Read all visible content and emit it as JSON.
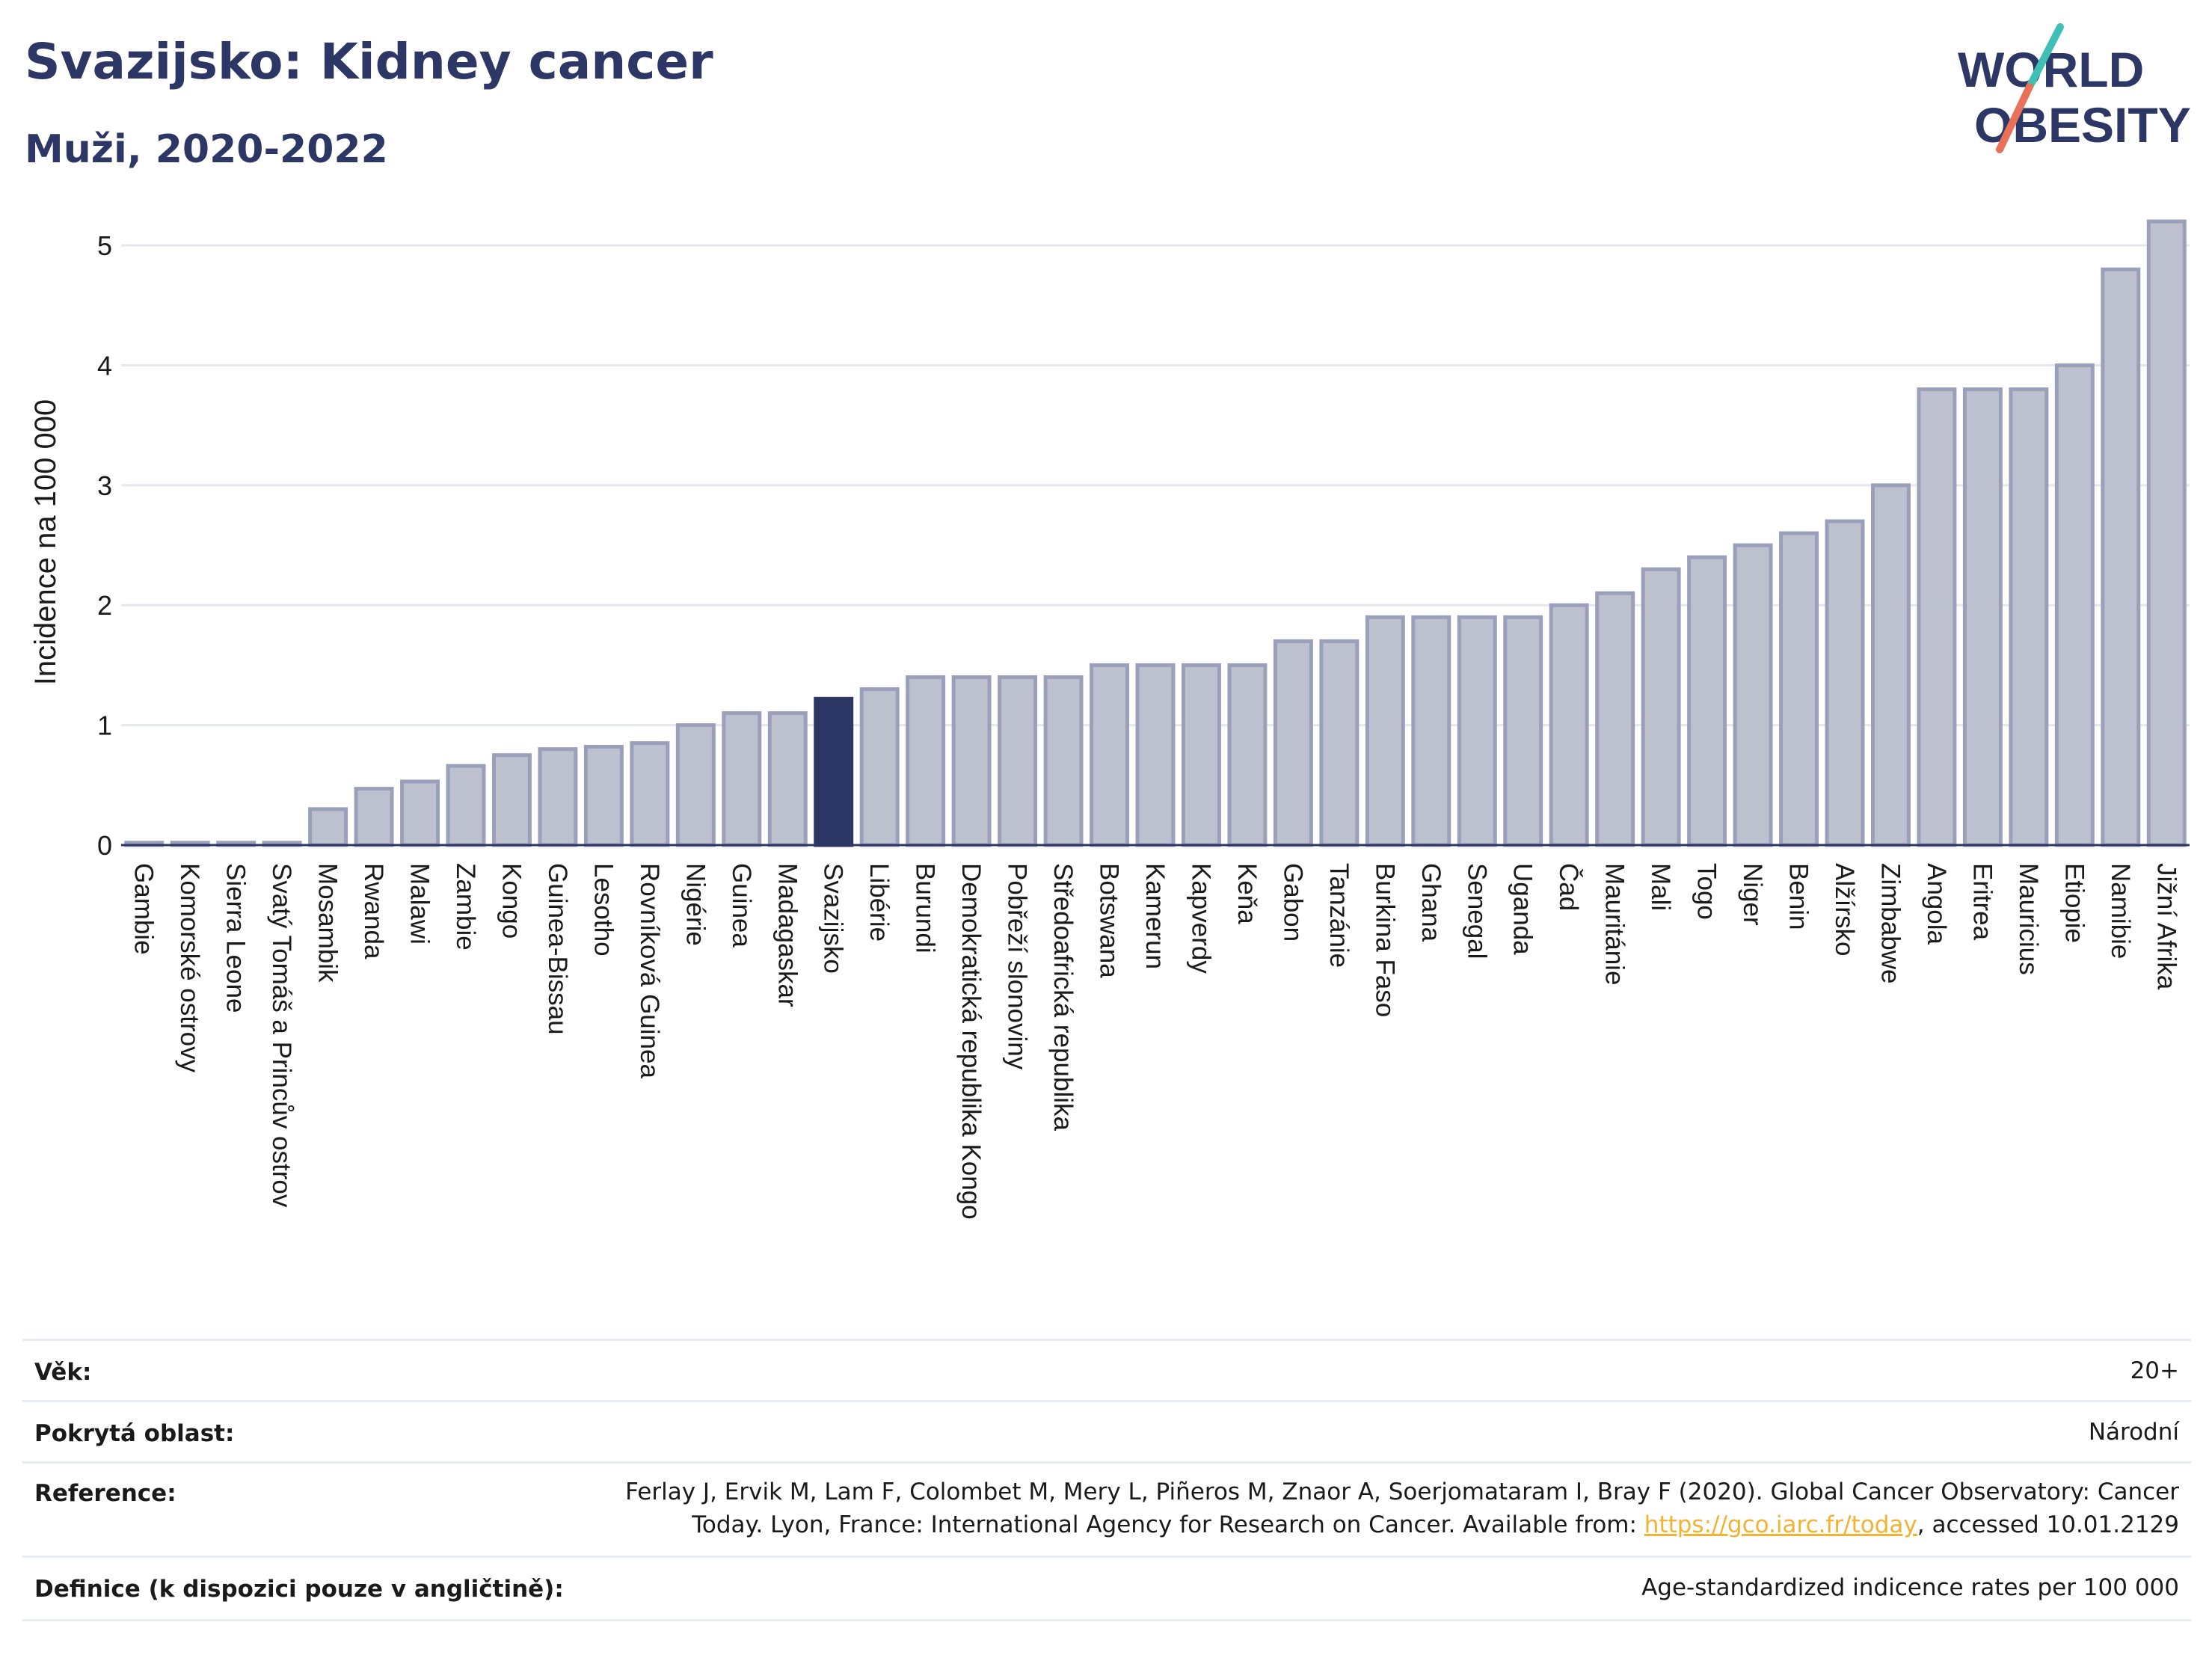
{
  "header": {
    "title": "Svazijsko: Kidney cancer",
    "subtitle": "Muži, 2020-2022",
    "logo_line1": "WORLD",
    "logo_line2": "OBESITY"
  },
  "colors": {
    "bar": "#bcc0cf",
    "bar_stroke": "#9aa0b9",
    "highlight": "#2c3765",
    "text_dark": "#2c3765",
    "logo_teal": "#3fbfb5",
    "logo_coral": "#e8715a"
  },
  "chart_data": {
    "type": "bar",
    "ylabel": "Incidence na 100 000",
    "ylim": [
      0,
      5.3
    ],
    "yticks": [
      0,
      1,
      2,
      3,
      4,
      5
    ],
    "grid": true,
    "highlight": "Svazijsko",
    "categories": [
      "Gambie",
      "Komorské ostrovy",
      "Sierra Leone",
      "Svatý Tomáš a Princův ostrov",
      "Mosambik",
      "Rwanda",
      "Malawi",
      "Zambie",
      "Kongo",
      "Guinea-Bissau",
      "Lesotho",
      "Rovníková Guinea",
      "Nigérie",
      "Guinea",
      "Madagaskar",
      "Svazijsko",
      "Libérie",
      "Burundi",
      "Demokratická republika Kongo",
      "Pobřeží slonoviny",
      "Středoafrická republika",
      "Botswana",
      "Kamerun",
      "Kapverdy",
      "Keňa",
      "Gabon",
      "Tanzánie",
      "Burkina Faso",
      "Ghana",
      "Senegal",
      "Uganda",
      "Čad",
      "Mauritánie",
      "Mali",
      "Togo",
      "Niger",
      "Benin",
      "Alžírsko",
      "Zimbabwe",
      "Angola",
      "Eritrea",
      "Mauricius",
      "Etiopie",
      "Namibie",
      "Jižní Afrika"
    ],
    "values": [
      0.02,
      0.02,
      0.02,
      0.02,
      0.3,
      0.47,
      0.53,
      0.66,
      0.75,
      0.8,
      0.82,
      0.85,
      1.0,
      1.1,
      1.1,
      1.22,
      1.3,
      1.4,
      1.4,
      1.4,
      1.4,
      1.5,
      1.5,
      1.5,
      1.5,
      1.7,
      1.7,
      1.9,
      1.9,
      1.9,
      1.9,
      2.0,
      2.1,
      2.3,
      2.4,
      2.5,
      2.6,
      2.7,
      3.0,
      3.8,
      3.8,
      3.8,
      4.0,
      4.8,
      5.2
    ]
  },
  "info": {
    "age_label": "Věk:",
    "age_value": "20+",
    "area_label": "Pokrytá oblast:",
    "area_value": "Národní",
    "reference_label": "Reference:",
    "reference_line1": "Ferlay J, Ervik M, Lam F, Colombet M, Mery L, Piñeros M, Znaor A, Soerjomataram I, Bray F (2020). Global Cancer Observatory: Cancer",
    "reference_line2_pre": "Today. Lyon, France: International Agency for Research on Cancer. Available from: ",
    "reference_link": "https://gco.iarc.fr/today",
    "reference_line2_post": ", accessed 10.01.2129",
    "definition_label": "Definice (k dispozici pouze v angličtině):",
    "definition_value": "Age-standardized indicence rates per 100 000"
  }
}
